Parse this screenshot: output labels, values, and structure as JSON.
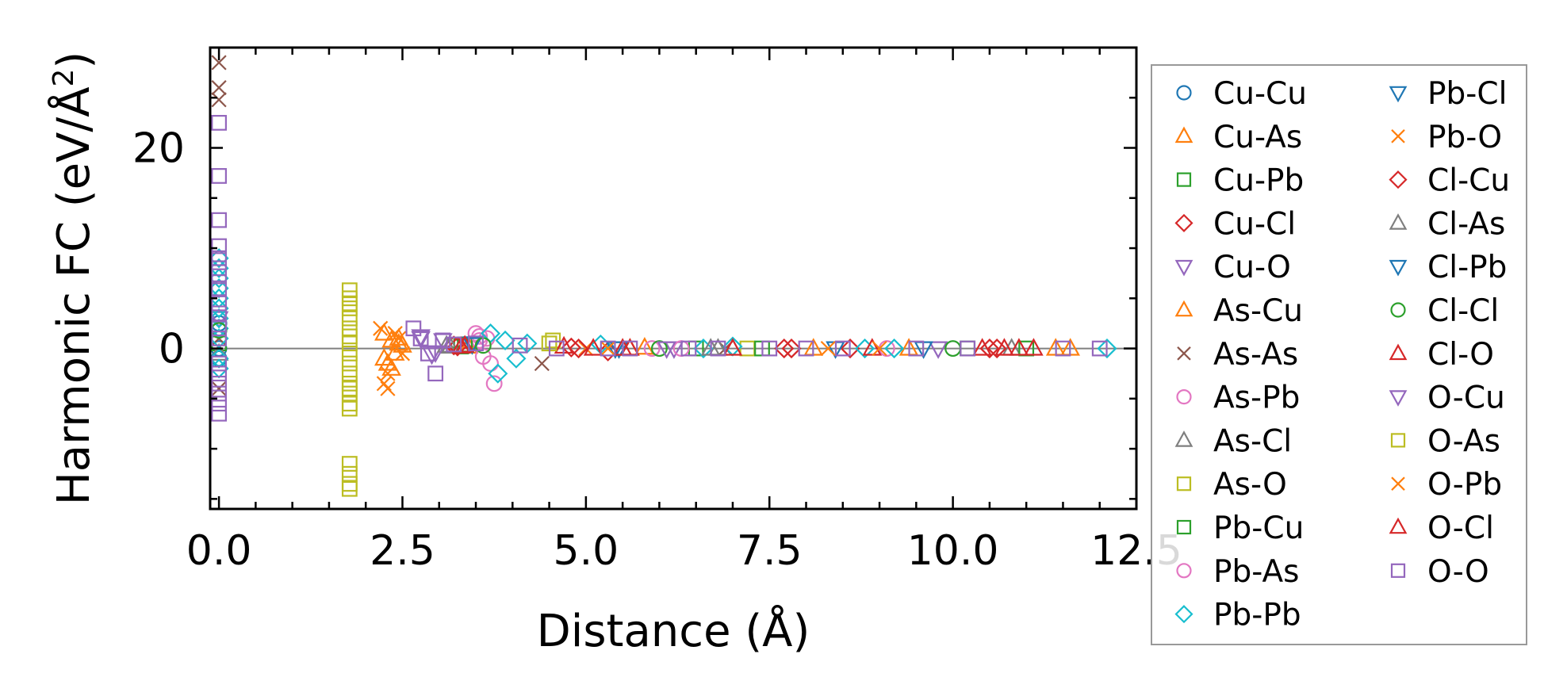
{
  "chart_data": {
    "type": "scatter",
    "title": "",
    "xlabel": "Distance (Å)",
    "ylabel_main": "Harmonic FC (eV/Å",
    "ylabel_sup": "2",
    "ylabel_close": ")",
    "xlim": [
      -0.12,
      12.5
    ],
    "ylim": [
      -16,
      30
    ],
    "x_ticks": [
      {
        "value": 0.0,
        "label": "0.0"
      },
      {
        "value": 2.5,
        "label": "2.5"
      },
      {
        "value": 5.0,
        "label": "5.0"
      },
      {
        "value": 7.5,
        "label": "7.5"
      },
      {
        "value": 10.0,
        "label": "10.0"
      },
      {
        "value": 12.5,
        "label": "12.5"
      }
    ],
    "y_ticks": [
      {
        "value": 0,
        "label": "0"
      },
      {
        "value": 20,
        "label": "20"
      }
    ],
    "y_minor_ticks": [
      -15,
      -10,
      -5,
      5,
      10,
      15,
      25
    ],
    "x_minor_step": 0.5,
    "zero_line": true,
    "legend_position": "outside-right",
    "series": [
      {
        "name": "Cu-Cu",
        "marker": "circle",
        "color": "#1f77b4",
        "points": [
          [
            0.0,
            0.0
          ],
          [
            0.0,
            2.5
          ],
          [
            0.0,
            -1.0
          ]
        ]
      },
      {
        "name": "Cu-As",
        "marker": "triangle-up",
        "color": "#ff7f0e",
        "points": [
          [
            2.25,
            1.5
          ],
          [
            2.3,
            -1.5
          ],
          [
            2.35,
            0.8
          ],
          [
            2.4,
            -0.5
          ],
          [
            2.45,
            1.0
          ],
          [
            2.5,
            0.3
          ],
          [
            3.4,
            0.2
          ],
          [
            5.8,
            0.1
          ],
          [
            9.4,
            0.0
          ],
          [
            11.6,
            0.0
          ]
        ]
      },
      {
        "name": "Cu-Pb",
        "marker": "square",
        "color": "#2ca02c",
        "points": [
          [
            0.0,
            0.5
          ],
          [
            3.3,
            0.2
          ],
          [
            6.5,
            0.0
          ],
          [
            10.2,
            0.0
          ]
        ]
      },
      {
        "name": "Cu-Cl",
        "marker": "diamond",
        "color": "#d62728",
        "points": [
          [
            3.2,
            0.3
          ],
          [
            4.8,
            0.1
          ],
          [
            5.3,
            -0.3
          ],
          [
            7.7,
            0.0
          ],
          [
            8.6,
            0.0
          ],
          [
            10.5,
            0.0
          ]
        ]
      },
      {
        "name": "Cu-O",
        "marker": "triangle-down",
        "color": "#9467bd",
        "points": [
          [
            0.0,
            3.0
          ],
          [
            2.75,
            1.2
          ],
          [
            2.9,
            -0.6
          ],
          [
            3.05,
            0.8
          ],
          [
            6.2,
            0.0
          ],
          [
            9.8,
            0.0
          ]
        ]
      },
      {
        "name": "As-Cu",
        "marker": "triangle-up",
        "color": "#ff7f0e",
        "points": [
          [
            2.25,
            -1.0
          ],
          [
            2.35,
            -2.0
          ],
          [
            2.45,
            0.5
          ],
          [
            5.6,
            0.0
          ],
          [
            8.1,
            0.0
          ],
          [
            11.4,
            0.0
          ]
        ]
      },
      {
        "name": "As-As",
        "marker": "x",
        "color": "#8c564b",
        "points": [
          [
            0.0,
            28.5
          ],
          [
            0.0,
            26.0
          ],
          [
            0.0,
            24.8
          ],
          [
            0.0,
            -4.0
          ],
          [
            0.0,
            1.0
          ],
          [
            4.4,
            -1.5
          ],
          [
            6.9,
            0.0
          ]
        ]
      },
      {
        "name": "As-Pb",
        "marker": "circle",
        "color": "#e377c2",
        "points": [
          [
            3.5,
            1.5
          ],
          [
            3.55,
            0.8
          ],
          [
            3.6,
            -0.8
          ],
          [
            3.75,
            -3.5
          ],
          [
            3.65,
            1.0
          ],
          [
            5.9,
            0.0
          ],
          [
            9.1,
            0.0
          ]
        ]
      },
      {
        "name": "As-Cl",
        "marker": "triangle-up",
        "color": "#7f7f7f",
        "points": [
          [
            0.0,
            -0.5
          ],
          [
            3.1,
            0.3
          ],
          [
            6.8,
            0.0
          ],
          [
            10.8,
            0.0
          ]
        ]
      },
      {
        "name": "As-O",
        "marker": "square",
        "color": "#bcbd22",
        "points": [
          [
            1.78,
            5.8
          ],
          [
            1.78,
            5.0
          ],
          [
            1.78,
            4.0
          ],
          [
            1.78,
            3.0
          ],
          [
            1.78,
            2.0
          ],
          [
            1.78,
            1.2
          ],
          [
            1.78,
            0.5
          ],
          [
            1.78,
            -0.5
          ],
          [
            1.78,
            -1.5
          ],
          [
            1.78,
            -2.5
          ],
          [
            1.78,
            -3.5
          ],
          [
            1.78,
            -4.5
          ],
          [
            1.78,
            -5.5
          ],
          [
            1.78,
            -6.0
          ],
          [
            1.78,
            -11.5
          ],
          [
            1.78,
            -12.5
          ],
          [
            1.78,
            -13.5
          ],
          [
            1.78,
            -14.0
          ],
          [
            4.55,
            0.8
          ],
          [
            7.2,
            0.0
          ]
        ]
      },
      {
        "name": "Pb-Cu",
        "marker": "square",
        "color": "#2ca02c",
        "points": [
          [
            3.35,
            0.4
          ],
          [
            7.4,
            0.0
          ],
          [
            11.0,
            0.0
          ]
        ]
      },
      {
        "name": "Pb-As",
        "marker": "circle",
        "color": "#e377c2",
        "points": [
          [
            3.55,
            1.2
          ],
          [
            3.7,
            -1.5
          ],
          [
            6.3,
            0.0
          ]
        ]
      },
      {
        "name": "Pb-Pb",
        "marker": "diamond",
        "color": "#17becf",
        "points": [
          [
            0.0,
            9.0
          ],
          [
            0.0,
            8.0
          ],
          [
            0.0,
            7.0
          ],
          [
            0.0,
            6.0
          ],
          [
            0.0,
            5.0
          ],
          [
            0.0,
            4.0
          ],
          [
            0.0,
            3.0
          ],
          [
            0.0,
            2.0
          ],
          [
            0.0,
            1.0
          ],
          [
            0.0,
            -1.0
          ],
          [
            0.0,
            -2.0
          ],
          [
            3.7,
            1.5
          ],
          [
            3.8,
            -2.5
          ],
          [
            3.9,
            0.8
          ],
          [
            4.05,
            -1.0
          ],
          [
            4.2,
            0.5
          ],
          [
            5.2,
            0.4
          ],
          [
            6.6,
            0.0
          ],
          [
            7.0,
            0.2
          ],
          [
            8.8,
            0.0
          ],
          [
            9.2,
            0.0
          ],
          [
            12.1,
            0.0
          ]
        ]
      },
      {
        "name": "Pb-Cl",
        "marker": "triangle-down",
        "color": "#1f77b4",
        "points": [
          [
            3.45,
            0.5
          ],
          [
            5.4,
            0.0
          ],
          [
            8.4,
            0.0
          ]
        ]
      },
      {
        "name": "Pb-O",
        "marker": "x",
        "color": "#ff7f0e",
        "points": [
          [
            2.2,
            2.0
          ],
          [
            2.25,
            -3.5
          ],
          [
            2.3,
            -4.0
          ],
          [
            2.4,
            1.5
          ],
          [
            2.5,
            -0.5
          ],
          [
            5.0,
            0.0
          ],
          [
            8.3,
            0.0
          ]
        ]
      },
      {
        "name": "Cl-Cu",
        "marker": "diamond",
        "color": "#d62728",
        "points": [
          [
            3.25,
            0.2
          ],
          [
            4.9,
            0.0
          ],
          [
            7.8,
            0.0
          ],
          [
            10.6,
            0.0
          ]
        ]
      },
      {
        "name": "Cl-As",
        "marker": "triangle-up",
        "color": "#7f7f7f",
        "points": [
          [
            3.15,
            0.2
          ],
          [
            6.7,
            0.0
          ]
        ]
      },
      {
        "name": "Cl-Pb",
        "marker": "triangle-down",
        "color": "#1f77b4",
        "points": [
          [
            3.45,
            0.4
          ],
          [
            5.45,
            0.0
          ],
          [
            9.6,
            0.0
          ]
        ]
      },
      {
        "name": "Cl-Cl",
        "marker": "circle",
        "color": "#2ca02c",
        "points": [
          [
            0.0,
            1.8
          ],
          [
            3.6,
            0.3
          ],
          [
            6.0,
            0.0
          ],
          [
            10.0,
            0.0
          ]
        ]
      },
      {
        "name": "Cl-O",
        "marker": "triangle-up",
        "color": "#d62728",
        "points": [
          [
            3.35,
            0.3
          ],
          [
            4.7,
            0.2
          ],
          [
            5.1,
            0.0
          ],
          [
            5.5,
            0.0
          ],
          [
            7.0,
            0.0
          ],
          [
            8.9,
            0.0
          ],
          [
            10.4,
            0.0
          ],
          [
            10.9,
            0.0
          ],
          [
            11.1,
            0.0
          ]
        ]
      },
      {
        "name": "O-Cu",
        "marker": "triangle-down",
        "color": "#9467bd",
        "points": [
          [
            2.75,
            1.0
          ],
          [
            2.95,
            -0.4
          ],
          [
            6.1,
            0.0
          ]
        ]
      },
      {
        "name": "O-As",
        "marker": "square",
        "color": "#bcbd22",
        "points": [
          [
            1.78,
            4.5
          ],
          [
            1.78,
            -4.0
          ],
          [
            4.5,
            0.5
          ]
        ]
      },
      {
        "name": "O-Pb",
        "marker": "x",
        "color": "#ff7f0e",
        "points": [
          [
            2.3,
            -2.5
          ],
          [
            2.45,
            1.0
          ],
          [
            5.3,
            0.0
          ],
          [
            9.0,
            0.0
          ]
        ]
      },
      {
        "name": "O-Cl",
        "marker": "triangle-up",
        "color": "#d62728",
        "points": [
          [
            3.3,
            0.2
          ],
          [
            5.6,
            0.0
          ],
          [
            10.7,
            0.0
          ]
        ]
      },
      {
        "name": "O-O",
        "marker": "square",
        "color": "#9467bd",
        "points": [
          [
            0.0,
            22.5
          ],
          [
            0.0,
            17.2
          ],
          [
            0.0,
            12.8
          ],
          [
            0.0,
            10.2
          ],
          [
            0.0,
            9.0
          ],
          [
            0.0,
            8.0
          ],
          [
            0.0,
            7.2
          ],
          [
            0.0,
            6.0
          ],
          [
            0.0,
            4.5
          ],
          [
            0.0,
            3.5
          ],
          [
            0.0,
            2.0
          ],
          [
            0.0,
            1.0
          ],
          [
            0.0,
            -1.5
          ],
          [
            0.0,
            -2.5
          ],
          [
            0.0,
            -3.5
          ],
          [
            0.0,
            -4.5
          ],
          [
            0.0,
            -5.5
          ],
          [
            0.0,
            -6.5
          ],
          [
            2.65,
            2.0
          ],
          [
            2.75,
            1.0
          ],
          [
            2.85,
            -0.5
          ],
          [
            2.95,
            -2.5
          ],
          [
            3.05,
            0.8
          ],
          [
            3.2,
            0.4
          ],
          [
            3.5,
            0.5
          ],
          [
            4.1,
            0.3
          ],
          [
            4.6,
            0.0
          ],
          [
            5.3,
            0.0
          ],
          [
            5.6,
            0.0
          ],
          [
            6.4,
            0.0
          ],
          [
            6.8,
            0.0
          ],
          [
            7.5,
            0.0
          ],
          [
            8.0,
            0.0
          ],
          [
            8.5,
            0.0
          ],
          [
            9.5,
            0.0
          ],
          [
            10.2,
            0.0
          ],
          [
            11.5,
            0.0
          ],
          [
            12.0,
            0.0
          ]
        ]
      }
    ]
  }
}
